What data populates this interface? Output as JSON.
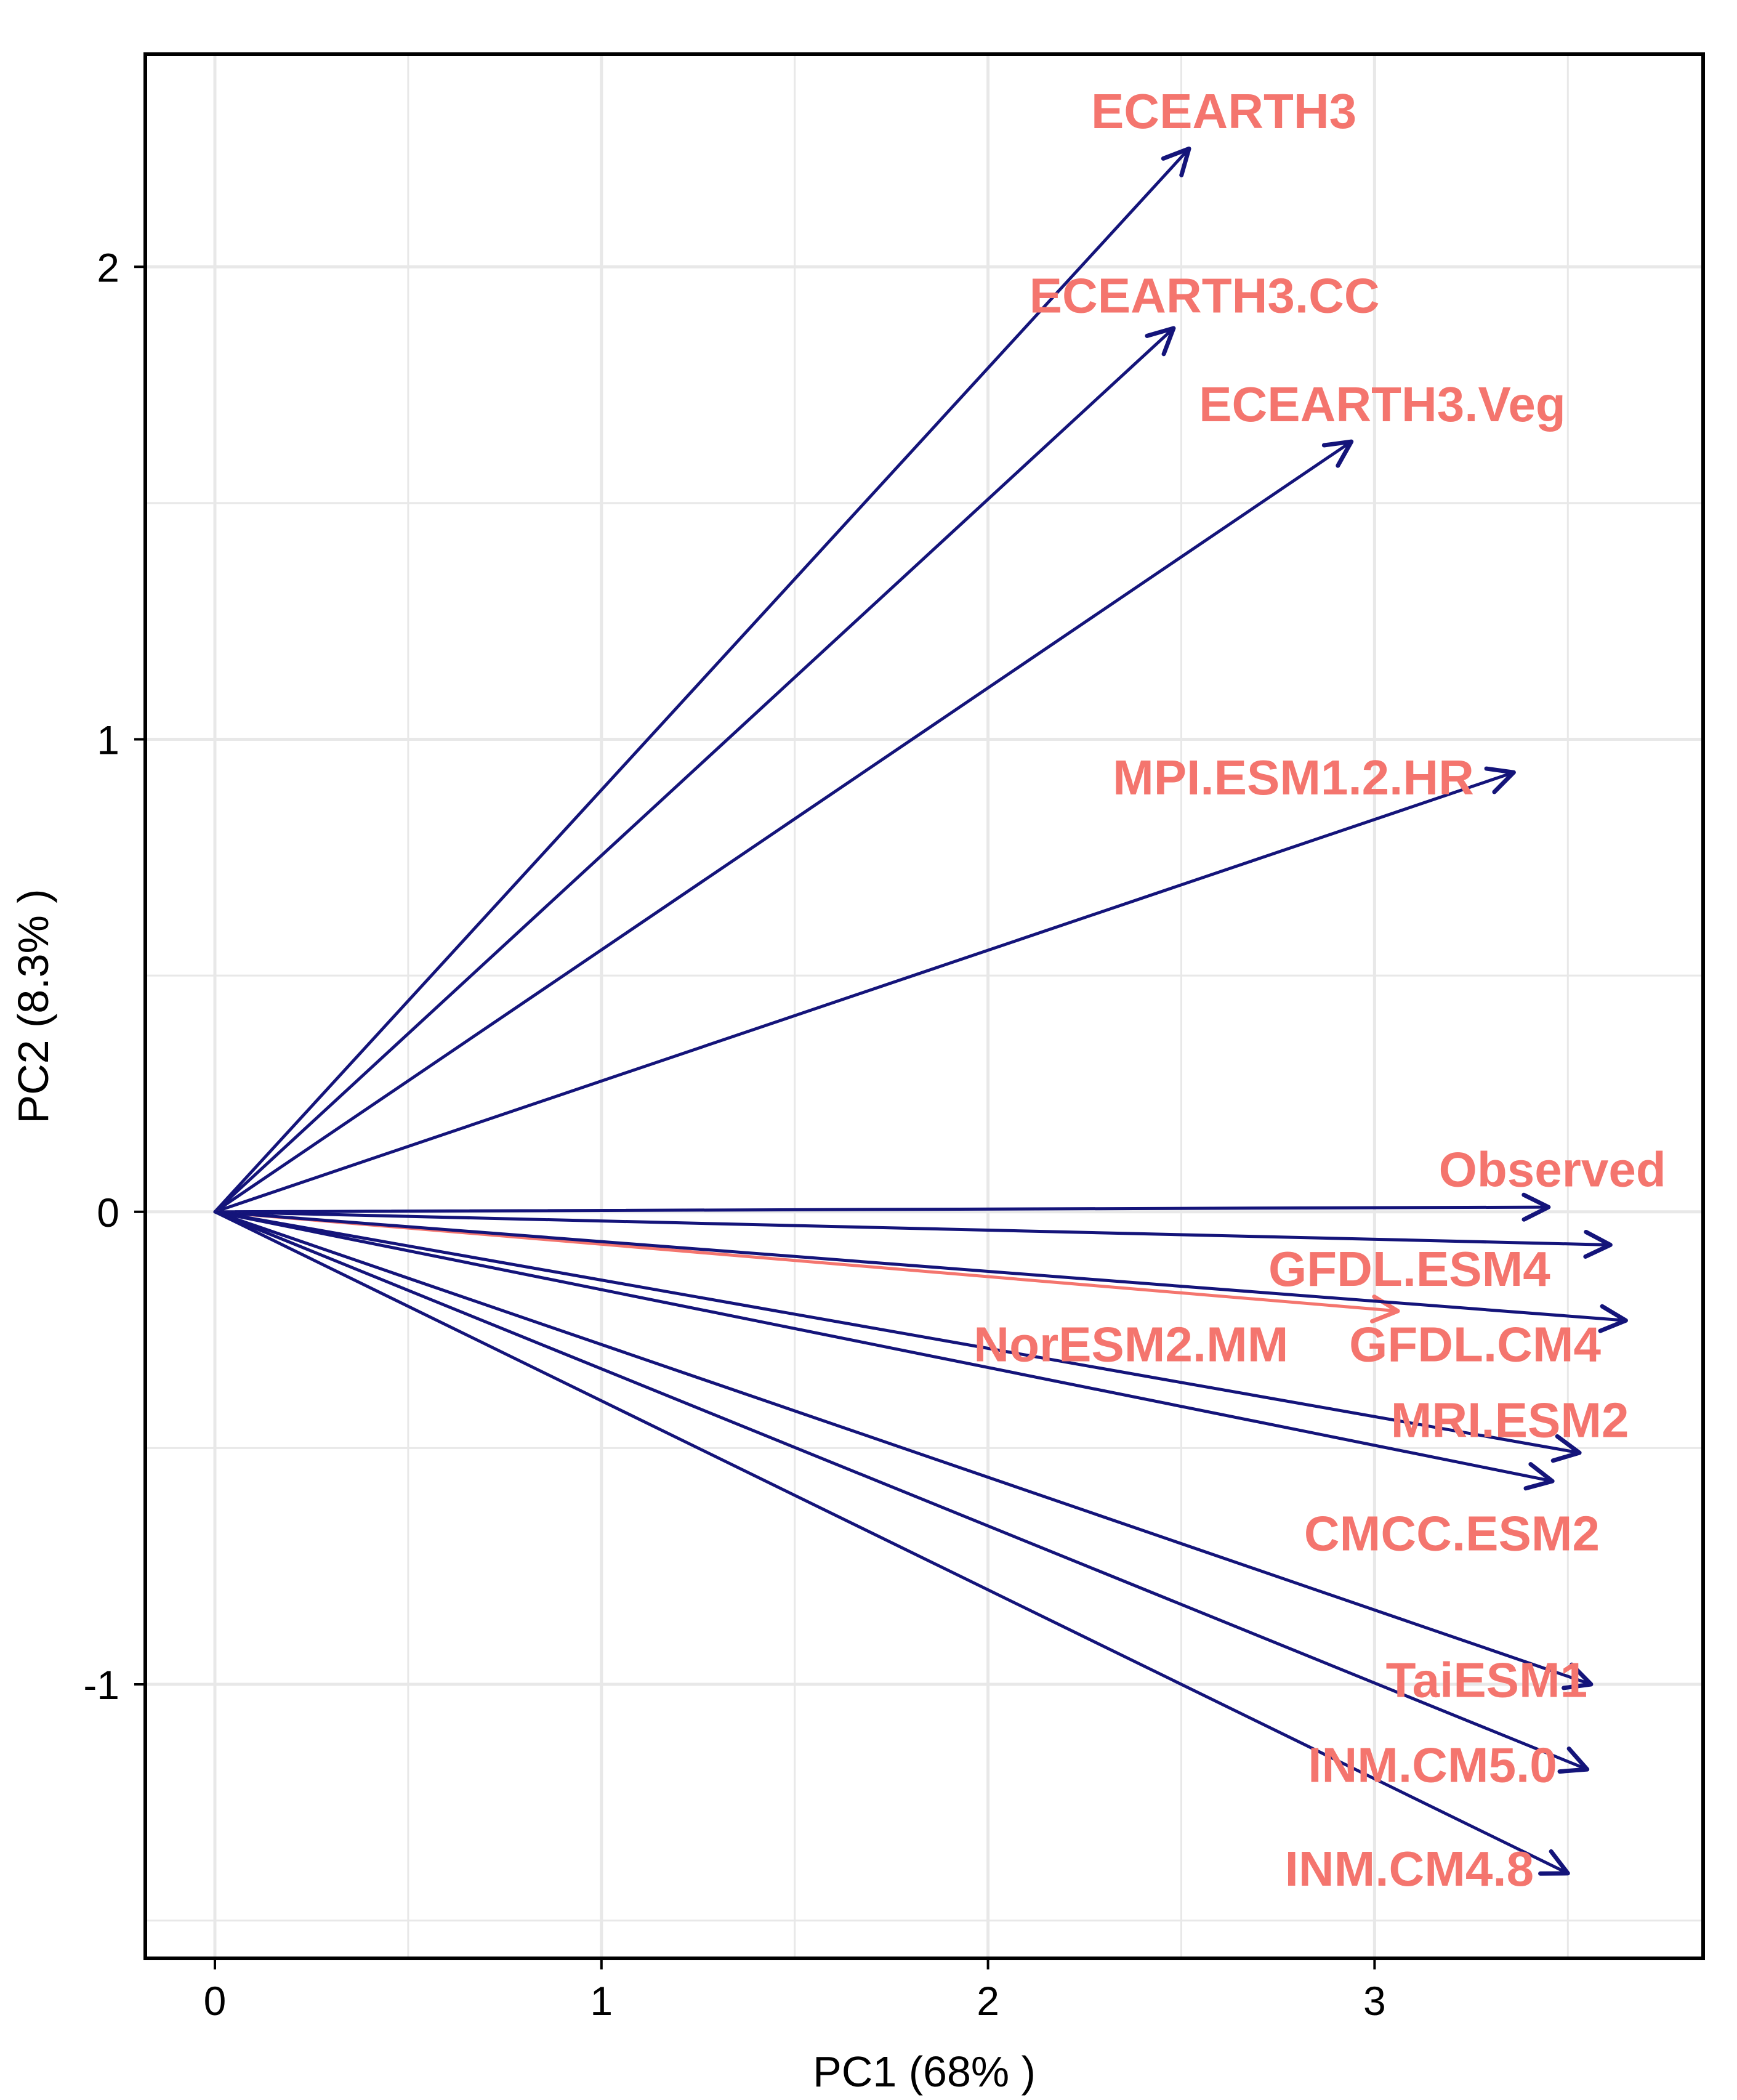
{
  "chart_data": {
    "type": "pca-biplot-loadings",
    "title": "",
    "xlabel": "PC1 (68% )",
    "ylabel": "PC2 (8.3% )",
    "xlim": [
      -0.18,
      3.85
    ],
    "ylim": [
      -1.58,
      2.45
    ],
    "x_ticks": [
      0,
      1,
      2,
      3
    ],
    "x_tick_labels": [
      "0",
      "1",
      "2",
      "3"
    ],
    "y_ticks": [
      -1,
      0,
      1,
      2
    ],
    "y_tick_labels": [
      "-1",
      "0",
      "1",
      "2"
    ],
    "grid": true,
    "legend": "none",
    "colors": {
      "arrow": "#14147a",
      "label": "#f4756e",
      "highlight_arrow": "#f4756e",
      "grid": "#e8e8e8",
      "frame": "#000000"
    },
    "origin": [
      0,
      0
    ],
    "vectors": [
      {
        "name": "ECEARTH3",
        "x": 2.52,
        "y": 2.25,
        "label_x": 2.61,
        "label_y": 2.33
      },
      {
        "name": "ECEARTH3.CC",
        "x": 2.48,
        "y": 1.87,
        "label_x": 2.56,
        "label_y": 1.94
      },
      {
        "name": "ECEARTH3.Veg",
        "x": 2.94,
        "y": 1.63,
        "label_x": 3.02,
        "label_y": 1.71
      },
      {
        "name": "MPI.ESM1.2.HR",
        "x": 3.36,
        "y": 0.93,
        "label_x": 2.79,
        "label_y": 0.92
      },
      {
        "name": "Observed",
        "x": 3.45,
        "y": 0.01,
        "label_x": 3.46,
        "label_y": 0.09
      },
      {
        "name": "GFDL.ESM4",
        "x": 3.61,
        "y": -0.07,
        "label_x": 3.09,
        "label_y": -0.12
      },
      {
        "name": "NorESM2.MM",
        "x": 3.06,
        "y": -0.21,
        "label_x": 2.37,
        "label_y": -0.28,
        "highlight": true
      },
      {
        "name": "GFDL.CM4",
        "x": 3.65,
        "y": -0.23,
        "label_x": 3.26,
        "label_y": -0.28
      },
      {
        "name": "MRI.ESM2",
        "x": 3.53,
        "y": -0.51,
        "label_x": 3.35,
        "label_y": -0.44
      },
      {
        "name": "CMCC.ESM2",
        "x": 3.46,
        "y": -0.57,
        "label_x": 3.2,
        "label_y": -0.68
      },
      {
        "name": "TaiESM1",
        "x": 3.56,
        "y": -1.0,
        "label_x": 3.29,
        "label_y": -0.99
      },
      {
        "name": "INM.CM5.0",
        "x": 3.55,
        "y": -1.18,
        "label_x": 3.15,
        "label_y": -1.17
      },
      {
        "name": "INM.CM4.8",
        "x": 3.5,
        "y": -1.4,
        "label_x": 3.09,
        "label_y": -1.39
      }
    ]
  }
}
